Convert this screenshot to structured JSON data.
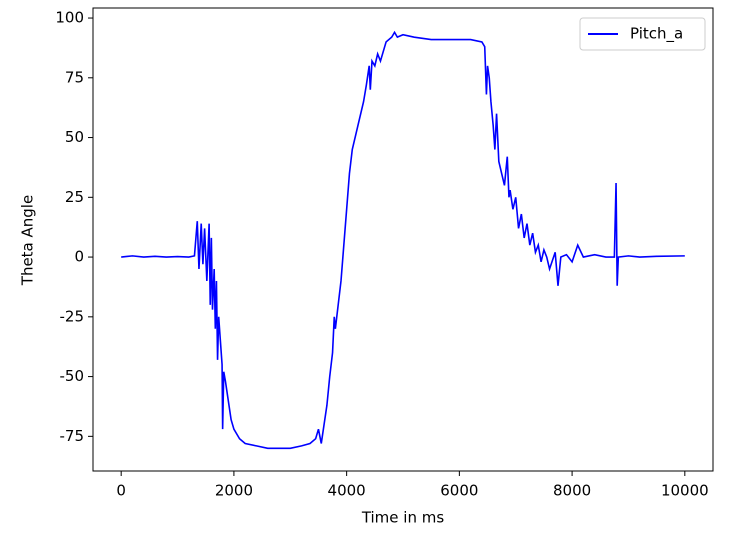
{
  "chart_data": {
    "type": "line",
    "xlabel": "Time in ms",
    "ylabel": "Theta Angle",
    "legend": "upper right",
    "xlim": [
      -500,
      10500
    ],
    "ylim": [
      -89.5,
      104.2
    ],
    "xticks": [
      0,
      2000,
      4000,
      6000,
      8000,
      10000
    ],
    "yticks": [
      -75,
      -50,
      -25,
      0,
      25,
      50,
      75,
      100
    ],
    "x": [
      0,
      200,
      400,
      600,
      800,
      1000,
      1200,
      1300,
      1350,
      1380,
      1420,
      1450,
      1480,
      1520,
      1560,
      1580,
      1600,
      1620,
      1650,
      1670,
      1690,
      1710,
      1730,
      1760,
      1790,
      1800,
      1820,
      1850,
      1900,
      1950,
      2000,
      2100,
      2200,
      2400,
      2600,
      2800,
      3000,
      3200,
      3350,
      3450,
      3500,
      3550,
      3600,
      3650,
      3700,
      3750,
      3780,
      3800,
      3850,
      3900,
      3950,
      4000,
      4050,
      4100,
      4200,
      4300,
      4350,
      4400,
      4420,
      4450,
      4500,
      4550,
      4600,
      4700,
      4800,
      4850,
      4900,
      5000,
      5200,
      5500,
      5800,
      6000,
      6200,
      6400,
      6450,
      6480,
      6500,
      6530,
      6560,
      6600,
      6630,
      6660,
      6700,
      6750,
      6800,
      6850,
      6880,
      6900,
      6950,
      7000,
      7050,
      7100,
      7150,
      7200,
      7250,
      7300,
      7350,
      7400,
      7450,
      7500,
      7550,
      7600,
      7700,
      7750,
      7800,
      7900,
      8000,
      8100,
      8200,
      8400,
      8600,
      8750,
      8780,
      8800,
      8820,
      9000,
      9200,
      9500,
      10000
    ],
    "series": [
      {
        "name": "Pitch_a",
        "color": "#0000ff",
        "values": [
          0,
          0.5,
          0,
          0.3,
          0,
          0.2,
          0,
          0.5,
          15,
          -5,
          14,
          -3,
          12,
          -10,
          14,
          -20,
          8,
          -22,
          -5,
          -30,
          -10,
          -43,
          -25,
          -35,
          -45,
          -72,
          -48,
          -52,
          -60,
          -68,
          -72,
          -76,
          -78,
          -79,
          -80,
          -80,
          -80,
          -79,
          -78,
          -76,
          -72,
          -78,
          -70,
          -62,
          -50,
          -40,
          -25,
          -30,
          -20,
          -10,
          5,
          20,
          35,
          45,
          55,
          65,
          72,
          80,
          70,
          82,
          80,
          85,
          82,
          90,
          92,
          94,
          92,
          93,
          92,
          91,
          91,
          91,
          91,
          90,
          88,
          68,
          80,
          75,
          65,
          55,
          45,
          60,
          40,
          35,
          30,
          42,
          25,
          28,
          20,
          25,
          12,
          18,
          8,
          14,
          5,
          10,
          2,
          5,
          -2,
          3,
          0,
          -5,
          2,
          -12,
          0,
          1,
          -2,
          5,
          0,
          1,
          0,
          0,
          31,
          -12,
          0,
          0.5,
          0,
          0.3,
          0.5
        ]
      }
    ]
  }
}
